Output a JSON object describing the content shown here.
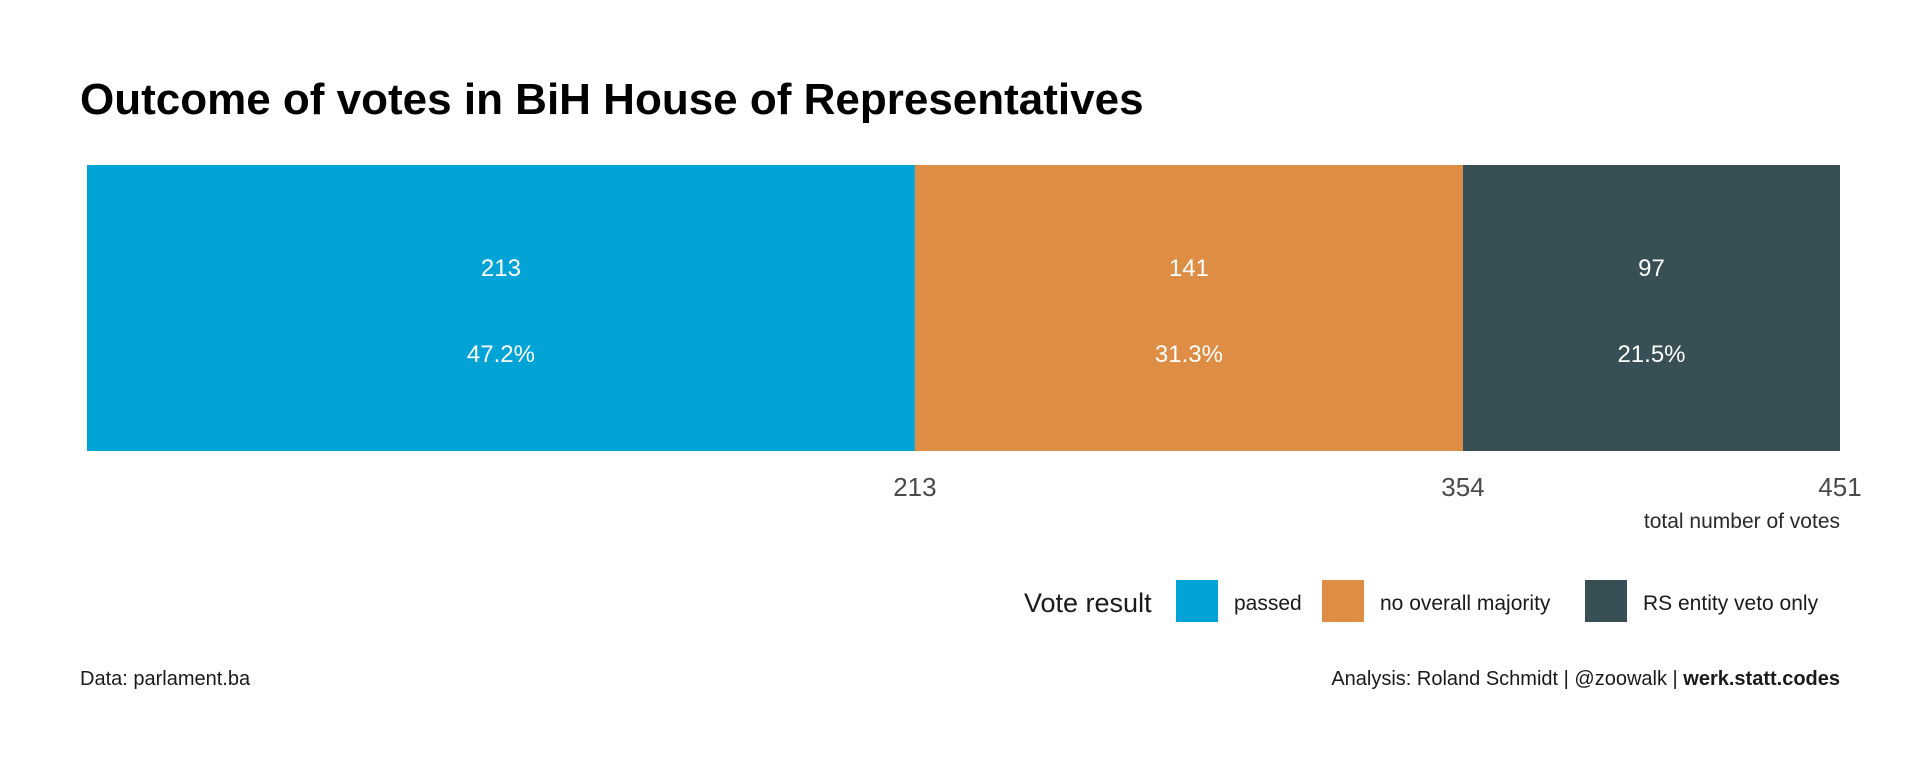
{
  "chart_data": {
    "type": "bar",
    "orientation": "horizontal-stacked",
    "title": "Outcome of votes in BiH House of Representatives",
    "categories": [
      "passed",
      "no overall majority",
      "RS entity veto only"
    ],
    "series": [
      {
        "name": "passed",
        "value": 213,
        "percent_label": "47.2%",
        "color": "#00A3D6"
      },
      {
        "name": "no overall majority",
        "value": 141,
        "percent_label": "31.3%",
        "color": "#DE8D44"
      },
      {
        "name": "RS entity veto only",
        "value": 97,
        "percent_label": "21.5%",
        "color": "#374F55"
      }
    ],
    "x_ticks": [
      "213",
      "354",
      "451"
    ],
    "xlim": [
      0,
      451
    ],
    "xlabel": "total number of votes",
    "legend": {
      "title": "Vote result",
      "position": "bottom-right"
    },
    "grid": false
  },
  "footer": {
    "source": "Data: parlament.ba",
    "credit_prefix": "Analysis: Roland Schmidt | @zoowalk | ",
    "credit_bold": "werk.statt.codes"
  }
}
